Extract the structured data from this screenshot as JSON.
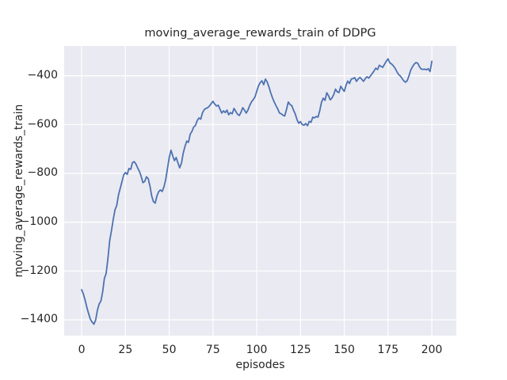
{
  "chart_data": {
    "type": "line",
    "title": "moving_average_rewards_train of DDPG",
    "xlabel": "episodes",
    "ylabel": "moving_average_rewards_train",
    "xlim": [
      -10,
      214
    ],
    "ylim": [
      -1465,
      -278
    ],
    "xticks": [
      0,
      25,
      50,
      75,
      100,
      125,
      150,
      175,
      200
    ],
    "yticks": [
      -400,
      -600,
      -800,
      -1000,
      -1200,
      -1400
    ],
    "grid": true,
    "legend": "none",
    "style": {
      "line_color": "#4c72b0",
      "axes_bg": "#eaeaf2",
      "grid_color": "#ffffff",
      "fig_bg": "#ffffff",
      "text_color": "#262626"
    },
    "series": [
      {
        "name": "moving_average_rewards_train",
        "x_start": 0,
        "x_step": 1,
        "values": [
          -1277,
          -1295,
          -1320,
          -1350,
          -1375,
          -1398,
          -1410,
          -1418,
          -1400,
          -1360,
          -1335,
          -1323,
          -1285,
          -1230,
          -1210,
          -1150,
          -1075,
          -1035,
          -990,
          -950,
          -932,
          -890,
          -862,
          -835,
          -806,
          -797,
          -804,
          -780,
          -784,
          -756,
          -752,
          -762,
          -778,
          -792,
          -812,
          -838,
          -833,
          -814,
          -822,
          -852,
          -893,
          -916,
          -922,
          -893,
          -875,
          -868,
          -874,
          -855,
          -825,
          -780,
          -736,
          -705,
          -728,
          -748,
          -735,
          -757,
          -777,
          -758,
          -717,
          -690,
          -668,
          -673,
          -640,
          -628,
          -610,
          -604,
          -584,
          -573,
          -578,
          -552,
          -539,
          -534,
          -531,
          -524,
          -514,
          -505,
          -516,
          -524,
          -521,
          -537,
          -553,
          -544,
          -551,
          -541,
          -560,
          -551,
          -556,
          -534,
          -546,
          -558,
          -563,
          -550,
          -531,
          -541,
          -553,
          -541,
          -522,
          -507,
          -498,
          -487,
          -464,
          -441,
          -428,
          -421,
          -437,
          -414,
          -426,
          -446,
          -471,
          -491,
          -508,
          -523,
          -536,
          -553,
          -556,
          -562,
          -565,
          -539,
          -508,
          -518,
          -523,
          -541,
          -557,
          -580,
          -595,
          -588,
          -600,
          -603,
          -596,
          -605,
          -587,
          -591,
          -570,
          -573,
          -567,
          -570,
          -544,
          -509,
          -492,
          -501,
          -470,
          -482,
          -499,
          -491,
          -477,
          -455,
          -466,
          -469,
          -443,
          -455,
          -464,
          -439,
          -422,
          -432,
          -414,
          -412,
          -408,
          -423,
          -413,
          -407,
          -415,
          -423,
          -412,
          -404,
          -410,
          -401,
          -391,
          -381,
          -369,
          -375,
          -357,
          -362,
          -366,
          -353,
          -341,
          -331,
          -347,
          -352,
          -359,
          -369,
          -383,
          -395,
          -401,
          -411,
          -421,
          -427,
          -420,
          -400,
          -377,
          -363,
          -352,
          -346,
          -349,
          -364,
          -373,
          -374,
          -373,
          -376,
          -371,
          -383,
          -341
        ]
      }
    ]
  }
}
